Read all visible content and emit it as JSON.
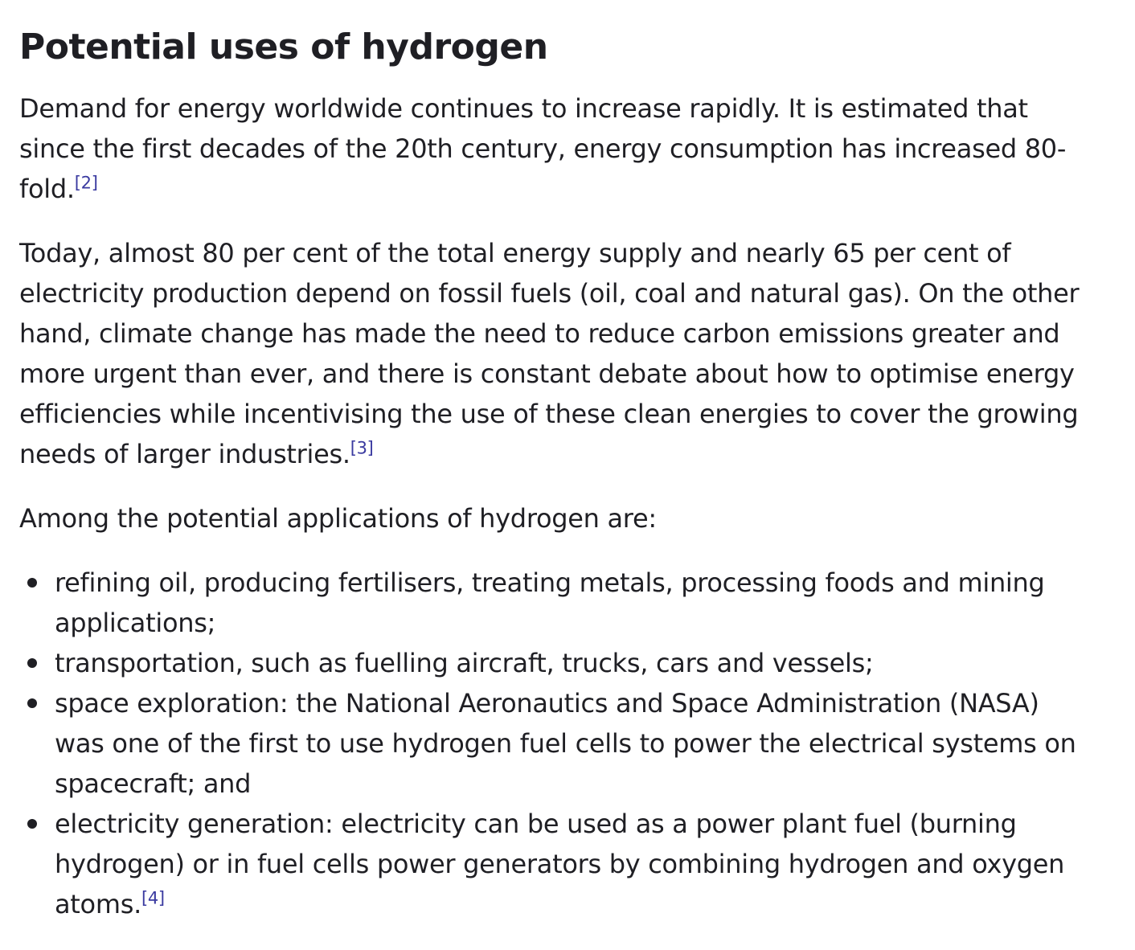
{
  "article": {
    "heading": "Potential uses of hydrogen",
    "paragraphs": [
      {
        "text": "Demand for energy worldwide continues to increase rapidly. It is estimated that since the first decades of the 20th century, energy consumption has increased 80-fold.",
        "ref": "[2]"
      },
      {
        "text": "Today, almost 80 per cent of the total energy supply and nearly 65 per cent of electricity production depend on fossil fuels (oil, coal and natural gas). On the other hand, climate change has made the need to reduce carbon emissions greater and more urgent than ever, and there is constant debate about how to optimise energy efficiencies while incentivising the use of these clean energies to cover the growing needs of larger industries.",
        "ref": "[3]"
      },
      {
        "text": "Among the potential applications of hydrogen are:"
      }
    ],
    "list_items": [
      {
        "text": "refining oil, producing fertilisers, treating metals, processing foods and mining applications;"
      },
      {
        "text": "transportation, such as fuelling aircraft, trucks, cars and vessels;"
      },
      {
        "text": "space exploration: the National Aeronautics and Space Administration (NASA) was one of the first to use hydrogen fuel cells to power the electrical systems on spacecraft; and"
      },
      {
        "text": "electricity generation: electricity can be used as a power plant fuel (burning hydrogen) or in fuel cells power generators by combining hydrogen and oxygen atoms.",
        "ref": "[4]"
      }
    ]
  },
  "colors": {
    "text": "#1f1f24",
    "link": "#3a3aa0",
    "background": "#ffffff"
  }
}
